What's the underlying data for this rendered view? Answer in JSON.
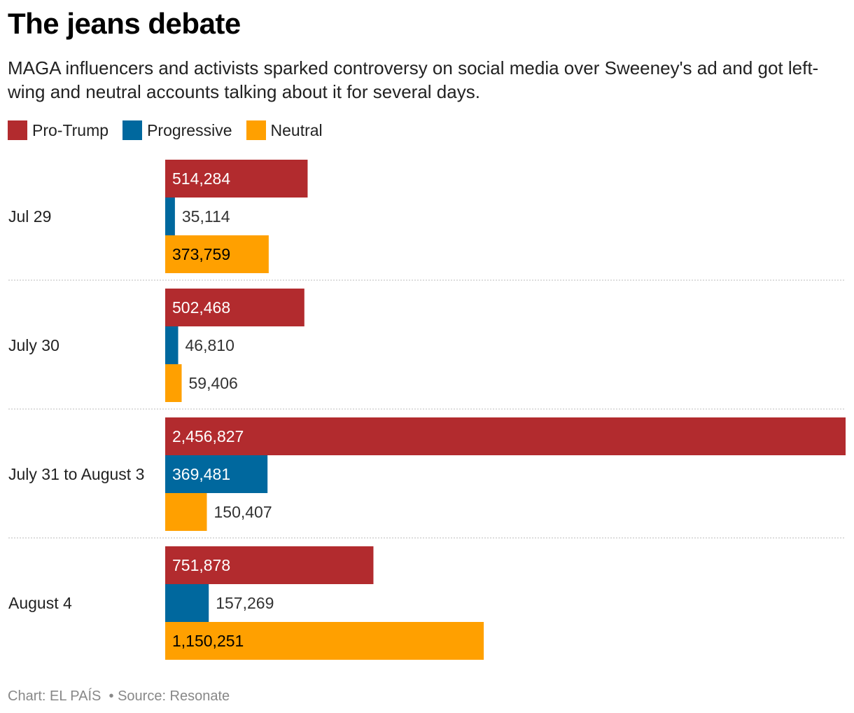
{
  "chart_data": {
    "type": "bar",
    "orientation": "horizontal",
    "title": "The jeans debate",
    "subtitle": "MAGA influencers and activists sparked controversy on social media over Sweeney's ad and got left-wing and neutral accounts talking about it for several days.",
    "categories": [
      "Jul 29",
      "July 30",
      "July 31 to August 3",
      "August 4"
    ],
    "series": [
      {
        "name": "Pro-Trump",
        "color": "#b22b2e",
        "values": [
          514284,
          502468,
          2456827,
          751878
        ],
        "labels": [
          "514,284",
          "502,468",
          "2,456,827",
          "751,878"
        ]
      },
      {
        "name": "Progressive",
        "color": "#00689e",
        "values": [
          35114,
          46810,
          369481,
          157269
        ],
        "labels": [
          "35,114",
          "46,810",
          "369,481",
          "157,269"
        ]
      },
      {
        "name": "Neutral",
        "color": "#ffa000",
        "values": [
          373759,
          59406,
          150407,
          1150251
        ],
        "labels": [
          "373,759",
          "59,406",
          "150,407",
          "1,150,251"
        ]
      }
    ],
    "xlim": [
      0,
      2456827
    ],
    "grid": false,
    "legend": "top-left"
  },
  "footer": {
    "credit": "Chart: EL PAÍS",
    "source": "• Source: Resonate"
  }
}
